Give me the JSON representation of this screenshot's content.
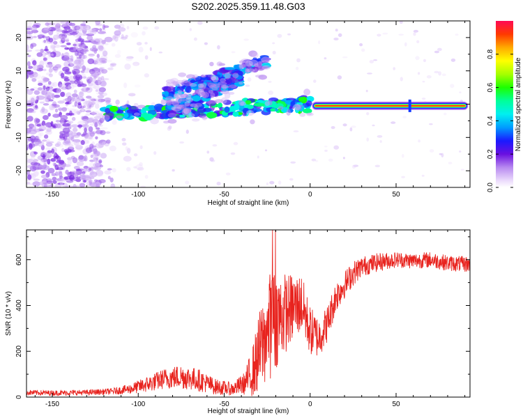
{
  "title": "S202.2025.359.11.48.G03",
  "chart_data": [
    {
      "type": "heatmap",
      "panel": "spectrogram",
      "xlabel": "Height of straight line (km)",
      "ylabel": "Frequency (Hz)",
      "xlim": [
        -165,
        93
      ],
      "ylim": [
        -25,
        25
      ],
      "xticks": [
        -150,
        -100,
        -50,
        0,
        50
      ],
      "xtick_labels": [
        "-150",
        "-100",
        "-50",
        "0",
        "50"
      ],
      "yticks": [
        -20,
        -10,
        0,
        10,
        20
      ],
      "ytick_labels": [
        "-20",
        "-10",
        "0",
        "10",
        "20"
      ],
      "colorbar": {
        "label": "Normalized spectral amplitude",
        "range": [
          0,
          1
        ],
        "ticks": [
          0.0,
          0.2,
          0.4,
          0.6,
          0.8
        ],
        "tick_labels": [
          "0.0",
          "0.2",
          "0.4",
          "0.6",
          "0.8"
        ]
      },
      "features": [
        {
          "name": "main carrier line",
          "x": [
            3,
            90
          ],
          "freq": [
            -0.5,
            -0.5
          ],
          "peak_amplitude": 0.95
        },
        {
          "name": "center track",
          "x": [
            -120,
            0
          ],
          "freq": [
            -3,
            0
          ],
          "peak_amplitude": 0.55
        },
        {
          "name": "upper diagonal track",
          "x": [
            -85,
            -25
          ],
          "freq": [
            3,
            13
          ],
          "peak_amplitude": 0.4
        },
        {
          "name": "middle diagonal track",
          "x": [
            -82,
            -40
          ],
          "freq": [
            -2,
            8
          ],
          "peak_amplitude": 0.4
        },
        {
          "name": "noise region",
          "x": [
            -165,
            -120
          ],
          "freq": [
            -25,
            25
          ],
          "peak_amplitude": 0.1
        }
      ]
    },
    {
      "type": "line",
      "panel": "snr",
      "xlabel": "Height of straight line (km)",
      "ylabel": "SNR (10 * v/v)",
      "xlim": [
        -165,
        93
      ],
      "ylim": [
        0,
        730
      ],
      "xticks": [
        -150,
        -100,
        -50,
        0,
        50
      ],
      "xtick_labels": [
        "-150",
        "-100",
        "-50",
        "0",
        "50"
      ],
      "yticks": [
        0,
        200,
        400,
        600
      ],
      "ytick_labels": [
        "0",
        "200",
        "400",
        "600"
      ],
      "series": [
        {
          "name": "SNR",
          "color": "#e8231e",
          "x": [
            -165,
            -150,
            -130,
            -115,
            -105,
            -95,
            -85,
            -75,
            -65,
            -55,
            -45,
            -38,
            -33,
            -28,
            -23,
            -18,
            -12,
            -5,
            0,
            5,
            10,
            15,
            20,
            25,
            30,
            40,
            50,
            60,
            70,
            80,
            90
          ],
          "y": [
            20,
            18,
            20,
            25,
            35,
            55,
            80,
            90,
            75,
            45,
            35,
            60,
            120,
            230,
            320,
            350,
            380,
            410,
            290,
            260,
            320,
            440,
            490,
            540,
            570,
            590,
            600,
            595,
            600,
            585,
            580
          ],
          "noise_amplitude": [
            12,
            12,
            12,
            14,
            22,
            35,
            45,
            55,
            50,
            35,
            28,
            50,
            120,
            200,
            240,
            200,
            160,
            130,
            110,
            90,
            80,
            70,
            60,
            55,
            45,
            40,
            35,
            35,
            35,
            35,
            35
          ]
        }
      ]
    }
  ]
}
